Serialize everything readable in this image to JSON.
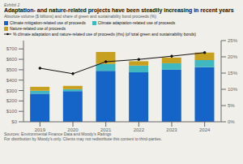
{
  "chart_data": {
    "type": "bar",
    "stacked": true,
    "title": "Adaptation- and nature-related projects have been steadily increasing in recent years",
    "subtitle": "Absolute volume ($ billions) and share of green and sustainability bond proceeds (%)",
    "annotations": [
      "Exhibit 2",
      "Sources: Environmental Finance Data and Moody’s Ratings",
      "For distribution by Moody’s only. Clients may not redistribute this content to third-parties."
    ],
    "categories": [
      "2019",
      "2020",
      "2021",
      "2022",
      "2023",
      "2024"
    ],
    "series": [
      {
        "name": "Climate mitigation-related use of proceeds",
        "color": "#1565C8",
        "values": [
          270,
          295,
          490,
          475,
          500,
          525
        ]
      },
      {
        "name": "Climate adaptation-related use of proceeds",
        "color": "#40B8C0",
        "values": [
          28,
          18,
          65,
          65,
          62,
          68
        ]
      },
      {
        "name": "Nature-related use of proceeds",
        "color": "#C8A020",
        "values": [
          38,
          32,
          115,
          42,
          55,
          72
        ]
      },
      {
        "name": "% climate adaptation and nature-related use of proceeds (rhs) (of total green and sustainability bonds)",
        "color": "#111111",
        "values": [
          16.5,
          14.8,
          18.5,
          19.2,
          20.2,
          21.3
        ],
        "type": "line",
        "axis": "y2",
        "marker": "circle"
      }
    ],
    "ylim": [
      0,
      780
    ],
    "yticks": [
      {
        "value": 0,
        "label": "$0"
      },
      {
        "value": 100,
        "label": "$100"
      },
      {
        "value": 200,
        "label": "$200"
      },
      {
        "value": 300,
        "label": "$300"
      },
      {
        "value": 400,
        "label": "$400"
      },
      {
        "value": 500,
        "label": "$500"
      },
      {
        "value": 600,
        "label": "$600"
      },
      {
        "value": 700,
        "label": "$700"
      }
    ],
    "y2lim": [
      0,
      25
    ],
    "y2ticks": [
      {
        "value": 0,
        "label": "0%"
      },
      {
        "value": 5,
        "label": "5%"
      },
      {
        "value": 10,
        "label": "10%"
      },
      {
        "value": 15,
        "label": "15%"
      },
      {
        "value": 20,
        "label": "20%"
      },
      {
        "value": 25,
        "label": "25%"
      }
    ],
    "grid": false,
    "legend": "top"
  }
}
